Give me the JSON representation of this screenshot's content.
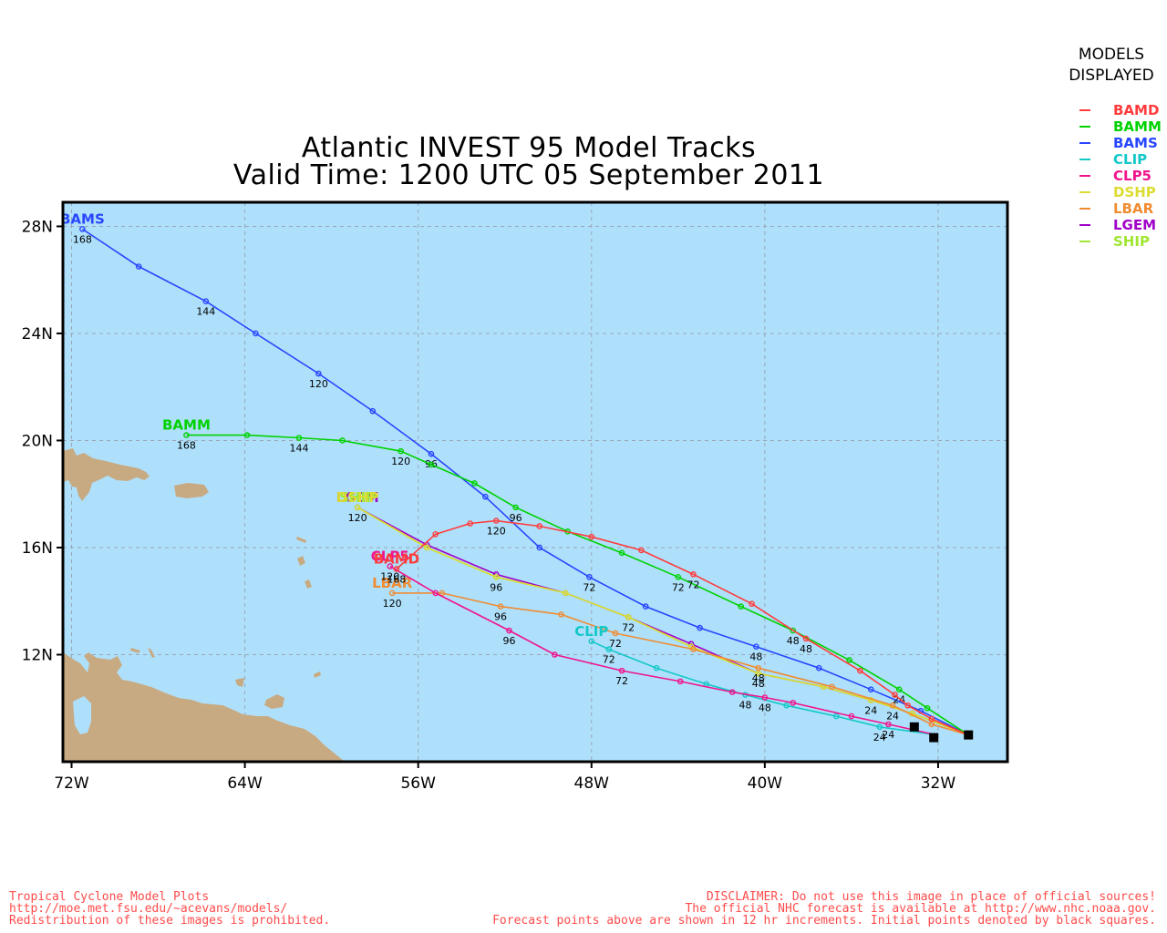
{
  "title": {
    "line1": "Atlantic INVEST 95 Model Tracks",
    "line2": "Valid Time: 1200 UTC 05 September 2011"
  },
  "legend": {
    "heading1": "MODELS",
    "heading2": "DISPLAYED",
    "items": [
      {
        "label": "BAMD",
        "color": "#ff3c3c"
      },
      {
        "label": "BAMM",
        "color": "#00d200"
      },
      {
        "label": "BAMS",
        "color": "#2846ff"
      },
      {
        "label": "CLIP",
        "color": "#14c8c8"
      },
      {
        "label": "CLP5",
        "color": "#f0148c"
      },
      {
        "label": "DSHP",
        "color": "#dcdc32"
      },
      {
        "label": "LBAR",
        "color": "#f08c32"
      },
      {
        "label": "LGEM",
        "color": "#a000c8"
      },
      {
        "label": "SHIP",
        "color": "#a0e632"
      }
    ]
  },
  "axes": {
    "x_ticks": [
      "72W",
      "64W",
      "56W",
      "48W",
      "40W",
      "32W"
    ],
    "y_ticks": [
      "28N",
      "24N",
      "20N",
      "16N",
      "12N"
    ],
    "lon_range": [
      -72.4,
      -28.8
    ],
    "lat_range": [
      8.0,
      28.9
    ],
    "grid": "dashed"
  },
  "colors": {
    "ocean": "#aee0fc",
    "land": "#c8aa82"
  },
  "map_data": {
    "tracks": [
      {
        "name": "BAMD",
        "color": "#ff3c3c",
        "label": "BAMD",
        "points": [
          [
            -30.6,
            9.0
          ],
          [
            -32.3,
            9.6
          ],
          [
            -33.4,
            10.1
          ],
          [
            -34.0,
            10.5
          ],
          [
            -35.6,
            11.4
          ],
          [
            -38.1,
            12.6
          ],
          [
            -40.6,
            13.9
          ],
          [
            -43.3,
            15.0
          ],
          [
            -45.7,
            15.9
          ],
          [
            -48.0,
            16.4
          ],
          [
            -50.4,
            16.8
          ],
          [
            -52.4,
            17.0
          ],
          [
            -53.6,
            16.9
          ],
          [
            -55.2,
            16.5
          ],
          [
            -57.0,
            15.2
          ]
        ],
        "hours": [
          {
            "text": "48",
            "lon": -38.1,
            "lat": 12.6
          },
          {
            "text": "72",
            "lon": -43.3,
            "lat": 15.0
          },
          {
            "text": "120",
            "lon": -52.4,
            "lat": 17.0
          },
          {
            "text": "168",
            "lon": -57.0,
            "lat": 15.2
          }
        ]
      },
      {
        "name": "BAMM",
        "color": "#00d200",
        "label": "BAMM",
        "points": [
          [
            -30.6,
            9.0
          ],
          [
            -32.5,
            10.0
          ],
          [
            -33.8,
            10.7
          ],
          [
            -36.1,
            11.8
          ],
          [
            -38.7,
            12.9
          ],
          [
            -41.1,
            13.8
          ],
          [
            -44.0,
            14.9
          ],
          [
            -46.6,
            15.8
          ],
          [
            -49.1,
            16.6
          ],
          [
            -51.5,
            17.5
          ],
          [
            -53.4,
            18.4
          ],
          [
            -55.4,
            19.1
          ],
          [
            -56.8,
            19.6
          ],
          [
            -59.5,
            20.0
          ],
          [
            -61.5,
            20.1
          ],
          [
            -63.9,
            20.2
          ],
          [
            -66.7,
            20.2
          ]
        ],
        "hours": [
          {
            "text": "24",
            "lon": -33.8,
            "lat": 10.7
          },
          {
            "text": "48",
            "lon": -38.7,
            "lat": 12.9
          },
          {
            "text": "72",
            "lon": -44.0,
            "lat": 14.9
          },
          {
            "text": "96",
            "lon": -51.5,
            "lat": 17.5
          },
          {
            "text": "120",
            "lon": -56.8,
            "lat": 19.6
          },
          {
            "text": "144",
            "lon": -61.5,
            "lat": 20.1
          },
          {
            "text": "168",
            "lon": -66.7,
            "lat": 20.2
          }
        ]
      },
      {
        "name": "BAMS",
        "color": "#2846ff",
        "label": "BAMS",
        "points": [
          [
            -30.6,
            9.0
          ],
          [
            -32.8,
            9.9
          ],
          [
            -35.1,
            10.7
          ],
          [
            -37.5,
            11.5
          ],
          [
            -40.4,
            12.3
          ],
          [
            -43.0,
            13.0
          ],
          [
            -45.5,
            13.8
          ],
          [
            -48.1,
            14.9
          ],
          [
            -50.4,
            16.0
          ],
          [
            -52.9,
            17.9
          ],
          [
            -55.4,
            19.5
          ],
          [
            -58.1,
            21.1
          ],
          [
            -60.6,
            22.5
          ],
          [
            -63.5,
            24.0
          ],
          [
            -65.8,
            25.2
          ],
          [
            -68.9,
            26.5
          ],
          [
            -71.5,
            27.9
          ]
        ],
        "hours": [
          {
            "text": "48",
            "lon": -40.4,
            "lat": 12.3
          },
          {
            "text": "72",
            "lon": -48.1,
            "lat": 14.9
          },
          {
            "text": "96",
            "lon": -55.4,
            "lat": 19.5
          },
          {
            "text": "120",
            "lon": -60.6,
            "lat": 22.5
          },
          {
            "text": "144",
            "lon": -65.8,
            "lat": 25.2
          },
          {
            "text": "168",
            "lon": -71.5,
            "lat": 27.9
          }
        ]
      },
      {
        "name": "CLIP",
        "color": "#14c8c8",
        "label": "CLIP",
        "points": [
          [
            -32.1,
            9.0
          ],
          [
            -34.7,
            9.3
          ],
          [
            -36.7,
            9.7
          ],
          [
            -39.0,
            10.1
          ],
          [
            -40.9,
            10.5
          ],
          [
            -42.7,
            10.9
          ],
          [
            -45.0,
            11.5
          ],
          [
            -47.2,
            12.2
          ],
          [
            -48.0,
            12.5
          ]
        ],
        "hours": [
          {
            "text": "24",
            "lon": -34.7,
            "lat": 9.3
          },
          {
            "text": "48",
            "lon": -40.9,
            "lat": 10.5
          },
          {
            "text": "72",
            "lon": -47.2,
            "lat": 12.2
          }
        ]
      },
      {
        "name": "CLP5",
        "color": "#f0148c",
        "label": "CLP5",
        "points": [
          [
            -32.1,
            9.0
          ],
          [
            -34.3,
            9.4
          ],
          [
            -36.0,
            9.7
          ],
          [
            -38.7,
            10.2
          ],
          [
            -40.0,
            10.4
          ],
          [
            -41.5,
            10.6
          ],
          [
            -43.9,
            11.0
          ],
          [
            -46.6,
            11.4
          ],
          [
            -49.7,
            12.0
          ],
          [
            -51.8,
            12.9
          ],
          [
            -55.2,
            14.3
          ],
          [
            -57.3,
            15.3
          ]
        ],
        "hours": [
          {
            "text": "24",
            "lon": -34.3,
            "lat": 9.4
          },
          {
            "text": "48",
            "lon": -40.0,
            "lat": 10.4
          },
          {
            "text": "72",
            "lon": -46.6,
            "lat": 11.4
          },
          {
            "text": "96",
            "lon": -51.8,
            "lat": 12.9
          },
          {
            "text": "120",
            "lon": -57.3,
            "lat": 15.3
          }
        ]
      },
      {
        "name": "DSHP",
        "color": "#dcdc32",
        "label": "DSHP",
        "points": [
          [
            -30.6,
            9.0
          ],
          [
            -33.2,
            9.8
          ],
          [
            -35.1,
            10.3
          ],
          [
            -37.3,
            10.8
          ],
          [
            -40.3,
            11.3
          ],
          [
            -43.4,
            12.3
          ],
          [
            -46.3,
            13.4
          ],
          [
            -49.2,
            14.3
          ],
          [
            -52.4,
            14.9
          ],
          [
            -55.6,
            16.0
          ],
          [
            -58.8,
            17.5
          ]
        ],
        "hours": [
          {
            "text": "24",
            "lon": -35.1,
            "lat": 10.3
          },
          {
            "text": "48",
            "lon": -40.3,
            "lat": 11.3
          },
          {
            "text": "72",
            "lon": -46.3,
            "lat": 13.4
          },
          {
            "text": "96",
            "lon": -52.4,
            "lat": 14.9
          },
          {
            "text": "120",
            "lon": -58.8,
            "lat": 17.5
          }
        ]
      },
      {
        "name": "LBAR",
        "color": "#f08c32",
        "label": "LBAR",
        "points": [
          [
            -30.6,
            9.0
          ],
          [
            -32.3,
            9.4
          ],
          [
            -34.1,
            10.1
          ],
          [
            -36.9,
            10.8
          ],
          [
            -40.3,
            11.5
          ],
          [
            -43.3,
            12.2
          ],
          [
            -46.9,
            12.8
          ],
          [
            -49.4,
            13.5
          ],
          [
            -52.2,
            13.8
          ],
          [
            -54.9,
            14.3
          ],
          [
            -57.2,
            14.3
          ]
        ],
        "hours": [
          {
            "text": "24",
            "lon": -34.1,
            "lat": 10.1
          },
          {
            "text": "48",
            "lon": -40.3,
            "lat": 11.5
          },
          {
            "text": "72",
            "lon": -46.9,
            "lat": 12.8
          },
          {
            "text": "96",
            "lon": -52.2,
            "lat": 13.8
          },
          {
            "text": "120",
            "lon": -57.2,
            "lat": 14.3
          }
        ]
      },
      {
        "name": "LGEM",
        "color": "#a000c8",
        "label": "LGEM",
        "points": [
          [
            -30.6,
            9.0
          ],
          [
            -33.2,
            9.8
          ],
          [
            -35.1,
            10.3
          ],
          [
            -37.3,
            10.8
          ],
          [
            -40.3,
            11.3
          ],
          [
            -43.4,
            12.4
          ],
          [
            -46.3,
            13.4
          ],
          [
            -49.2,
            14.3
          ],
          [
            -52.4,
            15.0
          ],
          [
            -55.6,
            16.1
          ],
          [
            -58.8,
            17.5
          ]
        ],
        "hours": []
      },
      {
        "name": "SHIP",
        "color": "#a0e632",
        "label": "SHIP",
        "points": [
          [
            -30.6,
            9.0
          ],
          [
            -33.2,
            9.8
          ],
          [
            -35.1,
            10.3
          ],
          [
            -37.3,
            10.8
          ],
          [
            -40.3,
            11.3
          ],
          [
            -43.4,
            12.3
          ],
          [
            -46.3,
            13.4
          ],
          [
            -49.2,
            14.3
          ],
          [
            -52.4,
            14.9
          ],
          [
            -55.6,
            16.0
          ],
          [
            -58.8,
            17.5
          ]
        ],
        "hours": []
      }
    ],
    "initial_points": [
      [
        -30.6,
        9.0
      ],
      [
        -32.2,
        8.9
      ],
      [
        -33.1,
        9.3
      ]
    ]
  },
  "footer": {
    "left": "Tropical Cyclone Model Plots\nhttp://moe.met.fsu.edu/~acevans/models/\nRedistribution of these images is prohibited.",
    "right": "DISCLAIMER: Do not use this image in place of official sources!\nThe official NHC forecast is available at http://www.nhc.noaa.gov.\nForecast points above are shown in 12 hr increments. Initial points denoted by black squares."
  }
}
